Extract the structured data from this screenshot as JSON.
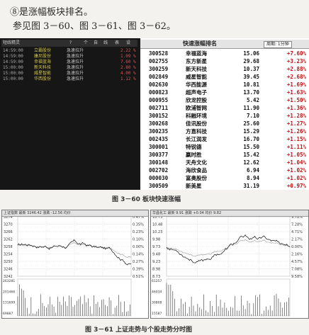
{
  "text": {
    "line1": "⑧是涨幅板块排名。",
    "line2": "参见图 3－60、图 3－61、图 3－62。"
  },
  "fig60": {
    "caption": "图 3－60    板块快速涨幅",
    "alerts": {
      "header": {
        "col1": "短线精灵",
        "col2": "?",
        "col3": "个",
        "col4": "自",
        "col5": "线",
        "col6": "表",
        "col7": "设"
      },
      "rows": [
        {
          "time": "14:59:00",
          "name": "立霸股份",
          "type": "急速拉升",
          "value": "2.22 %"
        },
        {
          "time": "14:59:00",
          "name": "康尼股份",
          "type": "急速拉升",
          "value": "1.09 %"
        },
        {
          "time": "14:59:00",
          "name": "幸福蓝海",
          "type": "急速拉升",
          "value": "7.60 %"
        },
        {
          "time": "15:00:00",
          "name": "新天科技",
          "type": "急速拉升",
          "value": "2.80 %"
        },
        {
          "time": "15:00:00",
          "name": "威星智能",
          "type": "急速拉升",
          "value": "4.00 %"
        },
        {
          "time": "15:00:00",
          "name": "华西股份",
          "type": "急速拉升",
          "value": "1.12 %"
        }
      ]
    },
    "rank": {
      "title": "快速涨幅排名",
      "period": "周期: 1分钟",
      "rows": [
        {
          "code": "300528",
          "name": "幸福蓝海",
          "price": "15.06",
          "change": "+7.60%"
        },
        {
          "code": "002755",
          "name": "东方新星",
          "price": "29.68",
          "change": "+3.23%"
        },
        {
          "code": "300259",
          "name": "新天科技",
          "price": "10.37",
          "change": "+2.88%"
        },
        {
          "code": "002849",
          "name": "威星智能",
          "price": "39.45",
          "change": "+2.68%"
        },
        {
          "code": "002630",
          "name": "华西能源",
          "price": "10.81",
          "change": "+1.69%"
        },
        {
          "code": "000823",
          "name": "超声电子",
          "price": "13.70",
          "change": "+1.63%"
        },
        {
          "code": "000955",
          "name": "欣龙控股",
          "price": "5.42",
          "change": "+1.50%"
        },
        {
          "code": "002711",
          "name": "欧浦智网",
          "price": "11.90",
          "change": "+1.36%"
        },
        {
          "code": "300152",
          "name": "科融环境",
          "price": "7.10",
          "change": "+1.28%"
        },
        {
          "code": "300268",
          "name": "佳讯股份",
          "price": "25.60",
          "change": "+1.27%"
        },
        {
          "code": "300235",
          "name": "方直科技",
          "price": "15.29",
          "change": "+1.26%"
        },
        {
          "code": "002435",
          "name": "长江润发",
          "price": "16.70",
          "change": "+1.15%"
        },
        {
          "code": "300001",
          "name": "特锐德",
          "price": "15.50",
          "change": "+1.11%"
        },
        {
          "code": "300377",
          "name": "赢时胜",
          "price": "15.42",
          "change": "+1.05%"
        },
        {
          "code": "300148",
          "name": "天舟文化",
          "price": "12.62",
          "change": "+1.04%"
        },
        {
          "code": "002702",
          "name": "海欣食品",
          "price": "6.94",
          "change": "+1.02%"
        },
        {
          "code": "000030",
          "name": "富奥股份",
          "price": "8.94",
          "color": "",
          "change": "+1.02%"
        },
        {
          "code": "300509",
          "name": "新美星",
          "price": "31.19",
          "change": "+0.97%"
        }
      ]
    }
  },
  "fig61": {
    "caption": "图 3－61    上证走势与个股走势分时图",
    "left_header": "上证指数 最新 3246.42 涨跌 -12.56 均价",
    "right_header": "华昌化工 最新 9.91 涨跌 +0.04 均价 9.82",
    "left_y_ticks": [
      "3274",
      "3270",
      "3266",
      "3262",
      "3258",
      "3254",
      "3250",
      "3246",
      "3242"
    ],
    "left_pct_ticks": [
      "0.47%",
      "0.35%",
      "0.23%",
      "0.10%",
      "0.00%",
      "0.14%",
      "0.27%",
      "0.39%",
      "0.51%"
    ],
    "left_vol_ticks": [
      "263281",
      "201466",
      "131699",
      "69887"
    ],
    "right_y_ticks": [
      "10.73",
      "10.48",
      "10.23",
      "9.98",
      "9.73",
      "9.48",
      "9.23",
      "8.98",
      "8.73"
    ],
    "right_pct_ticks": [
      "9.78%",
      "7.28%",
      "4.71%",
      "2.17%",
      "0.00%",
      "2.16%",
      "4.57%",
      "7.08%",
      "9.58%"
    ],
    "right_vol_ticks": [
      "61257",
      "46034",
      "30808",
      "15587"
    ]
  }
}
